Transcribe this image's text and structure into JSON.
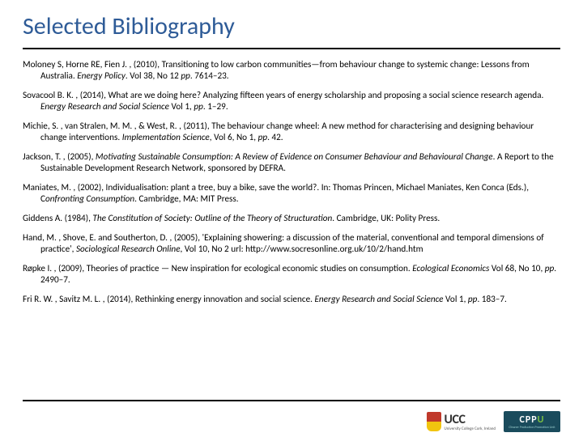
{
  "title": "Selected Bibliography",
  "entries": [
    "Moloney S, Horne RE, Fien J. , (2010), Transitioning to low carbon communities—from behaviour change to systemic change: Lessons from Australia. <em>Energy Policy</em>. Vol 38, No 12 <em>pp</em>. 7614–23.",
    "Sovacool B. K. , (2014), What are we doing here? Analyzing fifteen years of energy scholarship and proposing a social science research agenda. <em>Energy Research and Social Science</em> Vol 1, <em>pp</em>. 1–29.",
    "Michie, S. , van Stralen, M. M. , & West, R. , (2011), The behaviour change wheel: A new method for characterising and designing behaviour change interventions. <em>Implementation Science</em>, Vol 6, No 1, <em>pp</em>. 42.",
    "Jackson, T. , (2005), <em>Motivating Sustainable Consumption: A Review of Evidence on Consumer Behaviour and Behavioural Change</em>. A Report to the Sustainable Development Research Network, sponsored by DEFRA.",
    "Maniates, M. , (2002), Individualisation: plant a tree, buy a bike, save the world?. In: Thomas Princen, Michael Maniates, Ken Conca (Eds.), C<em>onfronting Consumption</em>. Cambridge, MA: MIT Press.",
    "Giddens A. (1984), <em>The Constitution of Society: Outline of the Theory of Structuration</em>. Cambridge, UK: Polity Press.",
    "Hand, M. , Shove, E. and Southerton, D. , (2005), 'Explaining showering: a discussion of the material, conventional and temporal dimensions of practice', <em>Sociological Research Online</em>, Vol 10, No 2 url: http://www.socresonline.org.uk/10/2/hand.htm",
    "Røpke I. , (2009), Theories of practice — New inspiration for ecological economic studies on consumption. <em>Ecological Economics</em> Vol 68, No 10, <em>pp</em>. 2490–7.",
    "Fri R. W. , Savitz M. L. , (2014), Rethinking energy innovation and social science. <em>Energy Research and Social Science</em> Vol 1, <em>pp</em>. 183–7."
  ],
  "logos": {
    "ucc_abbrev": "UCC",
    "ucc_full": "University College Cork, Ireland",
    "cppu_abbrev": "CPPU",
    "cppu_full": "Cleaner Production Promotion Unit"
  },
  "colors": {
    "title": "#2e5b97",
    "rule": "#000000",
    "body": "#000000",
    "cppu_bg": "#1a4b5c",
    "cppu_accent": "#7bc043"
  }
}
